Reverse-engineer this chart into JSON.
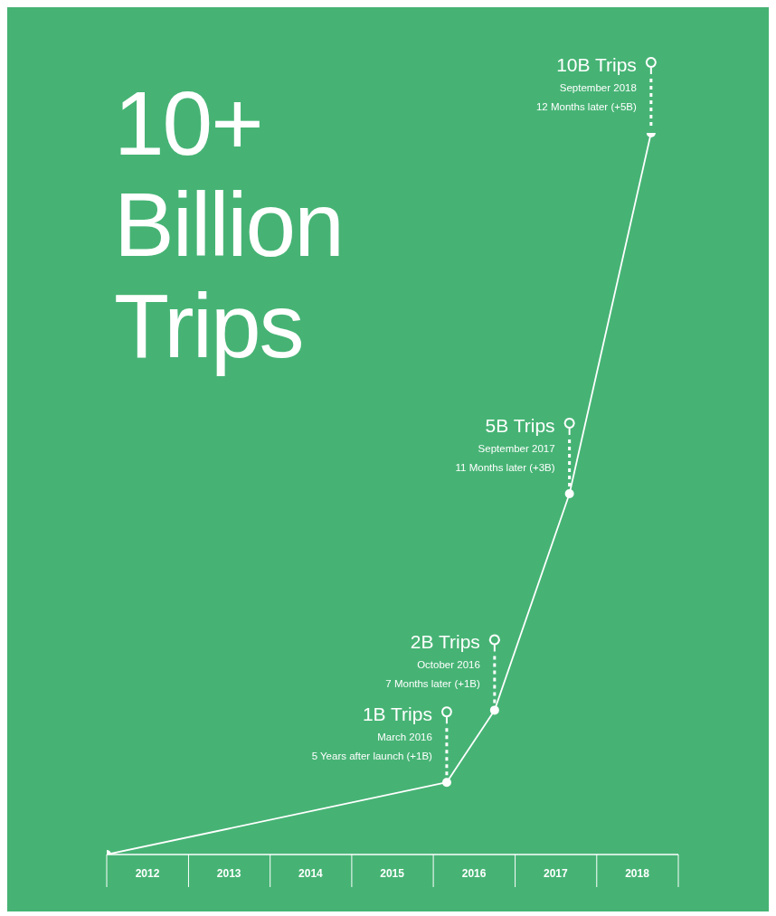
{
  "chart_data": {
    "type": "line",
    "title": "10+ Billion Trips",
    "x": [
      "2012-01",
      "2016-03",
      "2016-10",
      "2017-09",
      "2018-09"
    ],
    "series": [
      {
        "color": "#ffffff",
        "values": [
          0,
          1,
          2,
          5,
          10
        ],
        "value_labels": [
          null,
          "1B Trips",
          "2B Trips",
          "5B Trips",
          "10B Trips"
        ]
      }
    ],
    "xlim": [
      "2012-01",
      "2019-01"
    ],
    "xticks": [
      {
        "value": "2012-07",
        "label": "2012"
      },
      {
        "value": "2013-07",
        "label": "2013"
      },
      {
        "value": "2014-07",
        "label": "2014"
      },
      {
        "value": "2015-07",
        "label": "2015"
      },
      {
        "value": "2016-07",
        "label": "2016"
      },
      {
        "value": "2017-07",
        "label": "2017"
      },
      {
        "value": "2018-07",
        "label": "2018"
      }
    ],
    "marker": "circle",
    "annotations": [
      "March 2016",
      "5 Years after launch (+1B)",
      "October 2016",
      "7 Months later (+1B)",
      "September 2017",
      "11 Months later  (+3B)",
      "September 2018",
      "12 Months later (+5B)"
    ]
  }
}
